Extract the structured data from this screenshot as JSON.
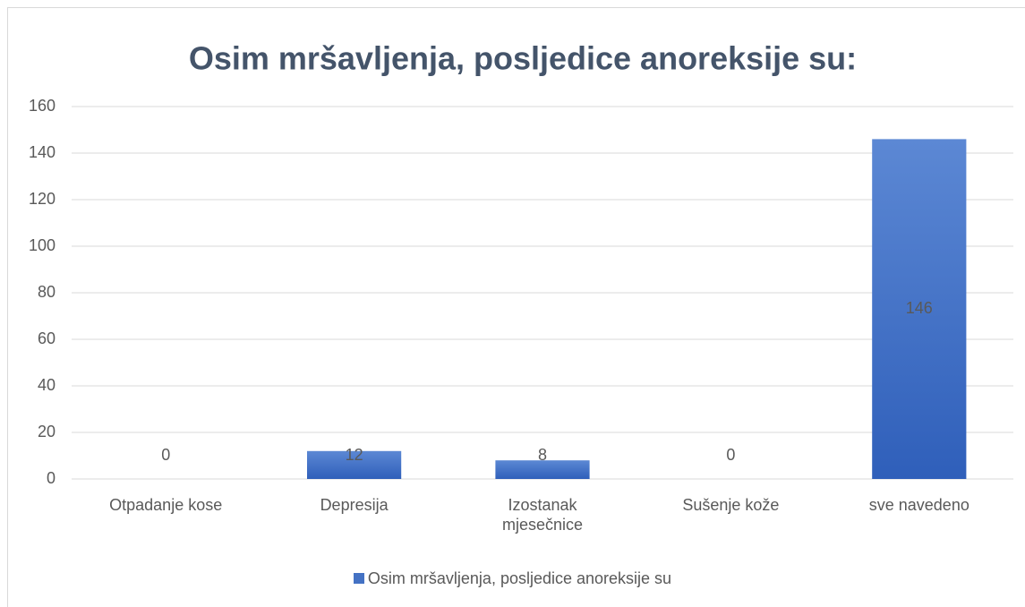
{
  "chart_data": {
    "type": "bar",
    "title": "Osim mršavljenja, posljedice anoreksije su:",
    "categories": [
      "Otpadanje kose",
      "Depresija",
      "Izostanak mjesečnice",
      "Sušenje kože",
      "sve navedeno"
    ],
    "series": [
      {
        "name": "Osim mršavljenja, posljedice anoreksije su",
        "color": "#4472c4",
        "values": [
          0,
          12,
          8,
          0,
          146
        ]
      }
    ],
    "ylim": [
      0,
      160
    ],
    "yticks": [
      0,
      20,
      40,
      60,
      80,
      100,
      120,
      140,
      160
    ],
    "grid": true,
    "legend": "bottom"
  }
}
